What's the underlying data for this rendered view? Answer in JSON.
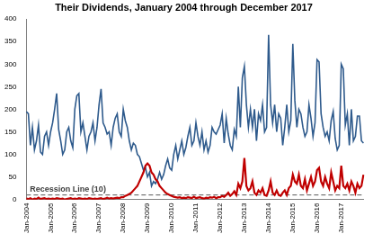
{
  "chart_data": {
    "type": "line",
    "title": "Their Dividends, January 2004 through December 2017",
    "categories": [
      "Jan-2004",
      null,
      null,
      null,
      null,
      null,
      null,
      null,
      null,
      null,
      null,
      null,
      "Jan-2005",
      null,
      null,
      null,
      null,
      null,
      null,
      null,
      null,
      null,
      null,
      null,
      "Jan-2006",
      null,
      null,
      null,
      null,
      null,
      null,
      null,
      null,
      null,
      null,
      null,
      "Jan-2007",
      null,
      null,
      null,
      null,
      null,
      null,
      null,
      null,
      null,
      null,
      null,
      "Jan-2008",
      null,
      null,
      null,
      null,
      null,
      null,
      null,
      null,
      null,
      null,
      null,
      "Jan-2009",
      null,
      null,
      null,
      null,
      null,
      null,
      null,
      null,
      null,
      null,
      null,
      "Jan-2010",
      null,
      null,
      null,
      null,
      null,
      null,
      null,
      null,
      null,
      null,
      null,
      "Jan-2011",
      null,
      null,
      null,
      null,
      null,
      null,
      null,
      null,
      null,
      null,
      null,
      "Jan-2012",
      null,
      null,
      null,
      null,
      null,
      null,
      null,
      null,
      null,
      null,
      null,
      "Jan-2013",
      null,
      null,
      null,
      null,
      null,
      null,
      null,
      null,
      null,
      null,
      null,
      "Jan-2014",
      null,
      null,
      null,
      null,
      null,
      null,
      null,
      null,
      null,
      null,
      null,
      "Jan-2015",
      null,
      null,
      null,
      null,
      null,
      null,
      null,
      null,
      null,
      null,
      null,
      "Jan-2016",
      null,
      null,
      null,
      null,
      null,
      null,
      null,
      null,
      null,
      null,
      null,
      "Jan-2017",
      null,
      null,
      null,
      null,
      null,
      null,
      null,
      null,
      null,
      null,
      null
    ],
    "series": [
      {
        "color": "#2e5a8c",
        "values": [
          195,
          190,
          120,
          160,
          110,
          130,
          165,
          105,
          100,
          140,
          150,
          120,
          150,
          170,
          200,
          235,
          155,
          130,
          100,
          110,
          150,
          160,
          130,
          115,
          200,
          230,
          235,
          150,
          170,
          140,
          110,
          140,
          150,
          170,
          130,
          160,
          210,
          245,
          170,
          160,
          145,
          150,
          120,
          160,
          180,
          190,
          150,
          140,
          200,
          175,
          160,
          130,
          110,
          125,
          120,
          100,
          95,
          80,
          65,
          70,
          50,
          60,
          30,
          40,
          35,
          45,
          60,
          45,
          55,
          75,
          90,
          70,
          65,
          100,
          120,
          90,
          110,
          130,
          100,
          115,
          140,
          160,
          120,
          130,
          170,
          140,
          120,
          150,
          110,
          130,
          105,
          120,
          160,
          150,
          145,
          155,
          165,
          190,
          125,
          180,
          145,
          120,
          110,
          155,
          140,
          250,
          160,
          270,
          295,
          210,
          160,
          200,
          160,
          200,
          130,
          190,
          175,
          210,
          150,
          160,
          365,
          210,
          170,
          210,
          150,
          190,
          180,
          120,
          160,
          210,
          150,
          175,
          345,
          220,
          160,
          200,
          190,
          160,
          140,
          150,
          210,
          180,
          140,
          170,
          310,
          305,
          190,
          160,
          140,
          150,
          130,
          175,
          195,
          135,
          110,
          120,
          300,
          290,
          165,
          190,
          120,
          200,
          130,
          140,
          185,
          185,
          130,
          125
        ]
      },
      {
        "color": "#c00000",
        "values": [
          2,
          1,
          3,
          0,
          2,
          1,
          4,
          1,
          2,
          3,
          1,
          2,
          1,
          2,
          1,
          3,
          2,
          1,
          2,
          0,
          1,
          2,
          3,
          1,
          2,
          1,
          3,
          2,
          1,
          2,
          1,
          3,
          2,
          1,
          2,
          1,
          2,
          3,
          1,
          2,
          4,
          2,
          3,
          2,
          3,
          4,
          3,
          5,
          5,
          8,
          10,
          12,
          15,
          20,
          25,
          30,
          40,
          50,
          60,
          75,
          80,
          75,
          60,
          55,
          45,
          40,
          30,
          25,
          20,
          15,
          12,
          10,
          8,
          6,
          5,
          4,
          5,
          3,
          4,
          3,
          5,
          4,
          3,
          6,
          3,
          4,
          5,
          3,
          2,
          4,
          3,
          5,
          4,
          6,
          3,
          5,
          5,
          8,
          6,
          10,
          15,
          8,
          12,
          18,
          10,
          35,
          25,
          40,
          92,
          30,
          20,
          25,
          40,
          15,
          10,
          20,
          15,
          25,
          10,
          8,
          20,
          40,
          15,
          10,
          20,
          10,
          8,
          15,
          20,
          10,
          25,
          30,
          55,
          40,
          35,
          55,
          30,
          25,
          45,
          20,
          35,
          50,
          30,
          40,
          65,
          70,
          40,
          30,
          50,
          35,
          25,
          60,
          40,
          20,
          30,
          25,
          75,
          30,
          25,
          35,
          20,
          40,
          30,
          15,
          35,
          25,
          30,
          55
        ]
      }
    ],
    "annotations": [
      {
        "text": "Recession Line (10)",
        "y": 10,
        "line_style": "dashed"
      }
    ],
    "ylim": [
      0,
      400
    ],
    "yticks": [
      0,
      50,
      100,
      150,
      200,
      250,
      300,
      350,
      400
    ],
    "grid": false
  }
}
